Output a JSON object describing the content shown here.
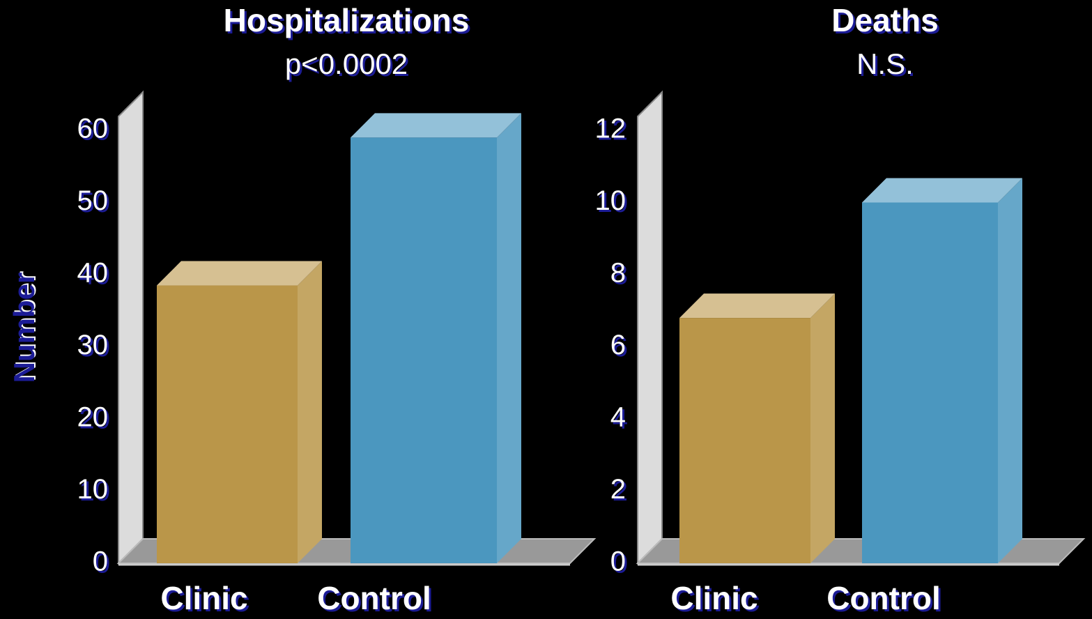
{
  "chart_data": [
    {
      "type": "bar",
      "title": "Hospitalizations",
      "subtitle": "p<0.0002",
      "y_label": "Number",
      "categories": [
        "Clinic",
        "Control"
      ],
      "values": [
        38.5,
        59
      ],
      "colors": [
        "#ba9649",
        "#4b97bf"
      ],
      "ylim": [
        0,
        60
      ],
      "yticks": [
        0,
        10,
        20,
        30,
        40,
        50,
        60
      ]
    },
    {
      "type": "bar",
      "title": "Deaths",
      "subtitle": "N.S.",
      "categories": [
        "Clinic",
        "Control"
      ],
      "values": [
        6.8,
        10
      ],
      "colors": [
        "#ba9649",
        "#4b97bf"
      ],
      "ylim": [
        0,
        12
      ],
      "yticks": [
        0,
        2,
        4,
        6,
        8,
        10,
        12
      ]
    }
  ]
}
